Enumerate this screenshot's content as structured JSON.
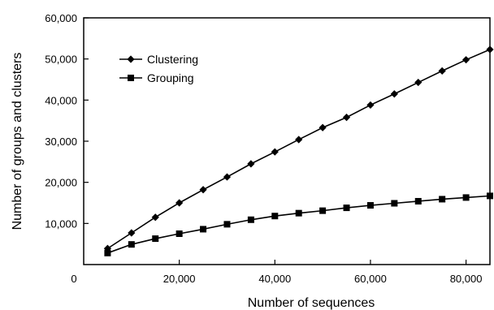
{
  "chart_data": {
    "type": "line",
    "title": "",
    "xlabel": "Number of sequences",
    "ylabel": "Number of groups and clusters",
    "xlim": [
      0,
      85000
    ],
    "ylim": [
      0,
      60000
    ],
    "x_ticks": [
      0,
      20000,
      40000,
      60000,
      80000
    ],
    "x_tick_labels": [
      "0",
      "20,000",
      "40,000",
      "60,000",
      "80,000"
    ],
    "y_ticks": [
      10000,
      20000,
      30000,
      40000,
      50000,
      60000
    ],
    "y_tick_labels": [
      "10,000",
      "20,000",
      "30,000",
      "40,000",
      "50,000",
      "60,000"
    ],
    "grid": false,
    "legend_position": "top-left",
    "x": [
      5000,
      10000,
      15000,
      20000,
      25000,
      30000,
      35000,
      40000,
      45000,
      50000,
      55000,
      60000,
      65000,
      70000,
      75000,
      80000,
      85000
    ],
    "series": [
      {
        "name": "Clustering",
        "marker": "diamond",
        "color": "#000000",
        "values": [
          3900,
          7700,
          11500,
          15000,
          18200,
          21300,
          24500,
          27400,
          30400,
          33300,
          35800,
          38800,
          41500,
          44300,
          47100,
          49800,
          52300
        ]
      },
      {
        "name": "Grouping",
        "marker": "square",
        "color": "#000000",
        "values": [
          2800,
          4900,
          6300,
          7500,
          8600,
          9800,
          10900,
          11800,
          12500,
          13100,
          13800,
          14400,
          14900,
          15400,
          15900,
          16300,
          16700
        ]
      }
    ]
  }
}
